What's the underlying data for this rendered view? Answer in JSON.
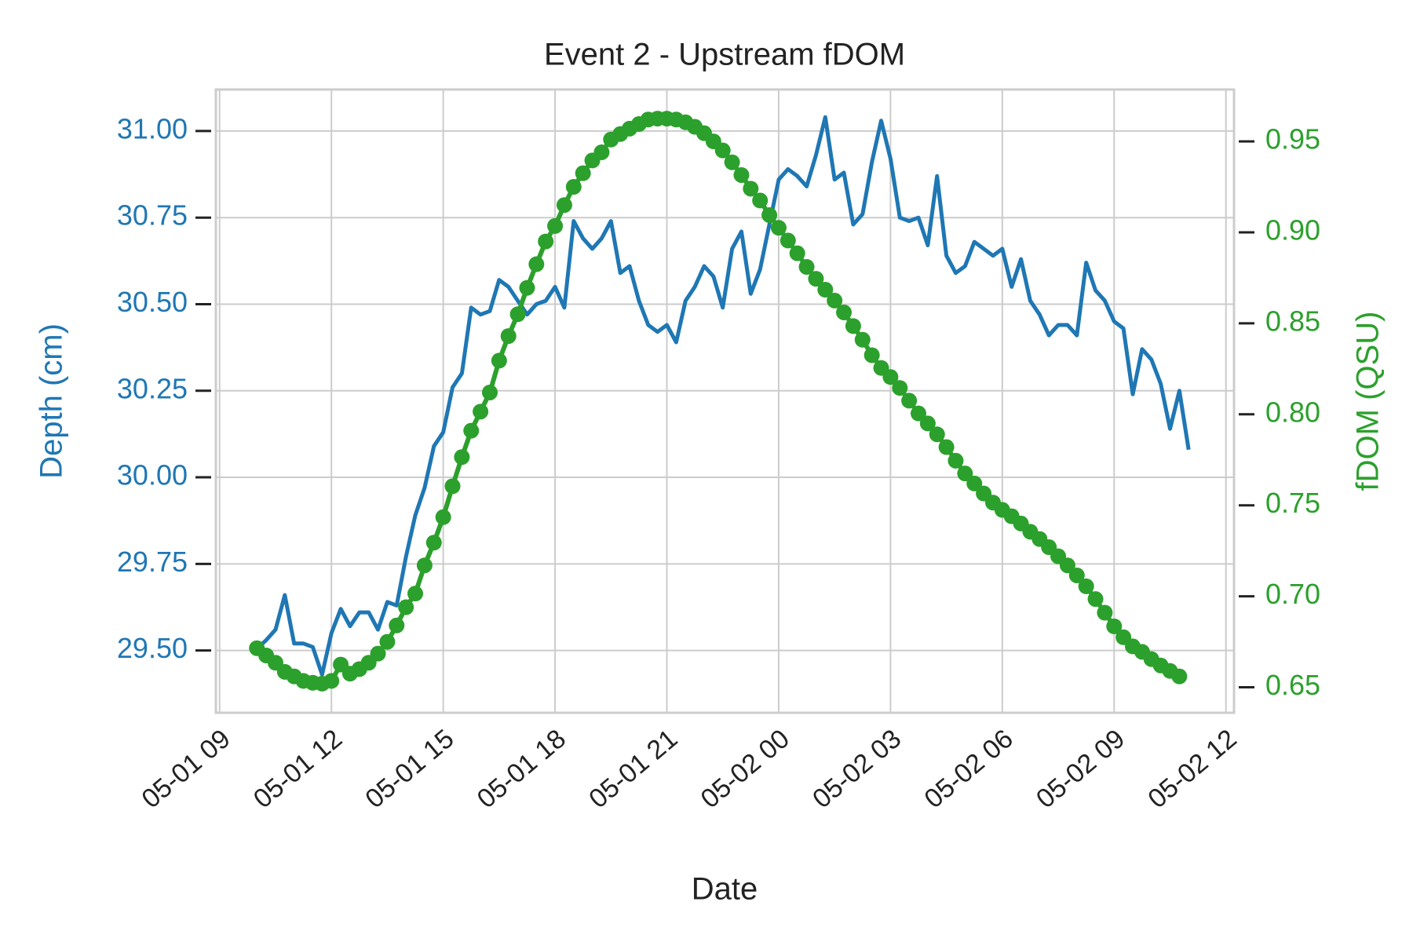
{
  "chart_data": {
    "type": "line",
    "title": "Event 2 - Upstream fDOM",
    "x_label": "Date",
    "y_label": "Depth (cm)",
    "y2_label": "fDOM (QSU)",
    "x": [
      "05-01 10:00",
      "05-01 10:15",
      "05-01 10:30",
      "05-01 10:45",
      "05-01 11:00",
      "05-01 11:15",
      "05-01 11:30",
      "05-01 11:45",
      "05-01 12:00",
      "05-01 12:15",
      "05-01 12:30",
      "05-01 12:45",
      "05-01 13:00",
      "05-01 13:15",
      "05-01 13:30",
      "05-01 13:45",
      "05-01 14:00",
      "05-01 14:15",
      "05-01 14:30",
      "05-01 14:45",
      "05-01 15:00",
      "05-01 15:15",
      "05-01 15:30",
      "05-01 15:45",
      "05-01 16:00",
      "05-01 16:15",
      "05-01 16:30",
      "05-01 16:45",
      "05-01 17:00",
      "05-01 17:15",
      "05-01 17:30",
      "05-01 17:45",
      "05-01 18:00",
      "05-01 18:15",
      "05-01 18:30",
      "05-01 18:45",
      "05-01 19:00",
      "05-01 19:15",
      "05-01 19:30",
      "05-01 19:45",
      "05-01 20:00",
      "05-01 20:15",
      "05-01 20:30",
      "05-01 20:45",
      "05-01 21:00",
      "05-01 21:15",
      "05-01 21:30",
      "05-01 21:45",
      "05-01 22:00",
      "05-01 22:15",
      "05-01 22:30",
      "05-01 22:45",
      "05-01 23:00",
      "05-01 23:15",
      "05-01 23:30",
      "05-01 23:45",
      "05-02 00:00",
      "05-02 00:15",
      "05-02 00:30",
      "05-02 00:45",
      "05-02 01:00",
      "05-02 01:15",
      "05-02 01:30",
      "05-02 01:45",
      "05-02 02:00",
      "05-02 02:15",
      "05-02 02:30",
      "05-02 02:45",
      "05-02 03:00",
      "05-02 03:15",
      "05-02 03:30",
      "05-02 03:45",
      "05-02 04:00",
      "05-02 04:15",
      "05-02 04:30",
      "05-02 04:45",
      "05-02 05:00",
      "05-02 05:15",
      "05-02 05:30",
      "05-02 05:45",
      "05-02 06:00",
      "05-02 06:15",
      "05-02 06:30",
      "05-02 06:45",
      "05-02 07:00",
      "05-02 07:15",
      "05-02 07:30",
      "05-02 07:45",
      "05-02 08:00",
      "05-02 08:15",
      "05-02 08:30",
      "05-02 08:45",
      "05-02 09:00",
      "05-02 09:15",
      "05-02 09:30",
      "05-02 09:45",
      "05-02 10:00",
      "05-02 10:15",
      "05-02 10:30",
      "05-02 10:45",
      "05-02 11:00"
    ],
    "series": [
      {
        "name": "Depth",
        "color": "#1f77b4",
        "axis": "y",
        "markers": false,
        "values": [
          29.505,
          29.53,
          29.56,
          29.66,
          29.52,
          29.52,
          29.51,
          29.43,
          29.55,
          29.62,
          29.57,
          29.61,
          29.61,
          29.56,
          29.64,
          29.63,
          29.77,
          29.89,
          29.97,
          30.09,
          30.13,
          30.26,
          30.3,
          30.49,
          30.47,
          30.48,
          30.57,
          30.55,
          30.51,
          30.47,
          30.5,
          30.51,
          30.55,
          30.49,
          30.74,
          30.69,
          30.66,
          30.69,
          30.74,
          30.59,
          30.61,
          30.51,
          30.44,
          30.42,
          30.44,
          30.39,
          30.51,
          30.55,
          30.61,
          30.58,
          30.49,
          30.66,
          30.71,
          30.53,
          30.6,
          30.73,
          30.86,
          30.89,
          30.87,
          30.84,
          30.93,
          31.04,
          30.86,
          30.88,
          30.73,
          30.76,
          30.91,
          31.03,
          30.92,
          30.75,
          30.74,
          30.75,
          30.67,
          30.87,
          30.64,
          30.59,
          30.61,
          30.68,
          30.66,
          30.64,
          30.66,
          30.55,
          30.63,
          30.51,
          30.47,
          30.41,
          30.44,
          30.44,
          30.41,
          30.62,
          30.54,
          30.51,
          30.45,
          30.43,
          30.24,
          30.37,
          30.34,
          30.27,
          30.14,
          30.25,
          30.08
        ]
      },
      {
        "name": "fDOM",
        "color": "#2ca02c",
        "axis": "y2",
        "markers": true,
        "values": [
          0.6715,
          0.6675,
          0.6635,
          0.6585,
          0.656,
          0.6535,
          0.6525,
          0.652,
          0.6535,
          0.6625,
          0.6575,
          0.66,
          0.6635,
          0.6685,
          0.675,
          0.684,
          0.694,
          0.7015,
          0.717,
          0.7295,
          0.7435,
          0.7605,
          0.7765,
          0.791,
          0.8015,
          0.812,
          0.8295,
          0.843,
          0.855,
          0.8695,
          0.8825,
          0.895,
          0.9035,
          0.915,
          0.925,
          0.9325,
          0.9395,
          0.944,
          0.951,
          0.954,
          0.957,
          0.9595,
          0.962,
          0.9625,
          0.9625,
          0.962,
          0.9605,
          0.958,
          0.9545,
          0.95,
          0.945,
          0.9385,
          0.9315,
          0.924,
          0.9175,
          0.9095,
          0.9025,
          0.8955,
          0.8885,
          0.881,
          0.8745,
          0.8685,
          0.8625,
          0.856,
          0.8485,
          0.841,
          0.8325,
          0.8255,
          0.8205,
          0.8145,
          0.8075,
          0.8005,
          0.795,
          0.789,
          0.782,
          0.7745,
          0.7675,
          0.762,
          0.7565,
          0.7515,
          0.7475,
          0.744,
          0.74,
          0.7355,
          0.7315,
          0.727,
          0.722,
          0.717,
          0.7115,
          0.7055,
          0.6985,
          0.691,
          0.6835,
          0.6775,
          0.6725,
          0.6695,
          0.6655,
          0.662,
          0.659,
          0.656,
          null
        ]
      }
    ],
    "xlim": [
      "05-01 08:54",
      "05-02 12:13"
    ],
    "xticks": [
      "05-01 09",
      "05-01 12",
      "05-01 15",
      "05-01 18",
      "05-01 21",
      "05-02 00",
      "05-02 03",
      "05-02 06",
      "05-02 09",
      "05-02 12"
    ],
    "ylim": [
      29.32,
      31.12
    ],
    "yticks": [
      {
        "value": 29.5,
        "label": "29.50"
      },
      29.75,
      {
        "value": 30,
        "label": "30.00"
      },
      30.25,
      {
        "value": 30.5,
        "label": "30.50"
      },
      30.75,
      {
        "value": 31,
        "label": "31.00"
      }
    ],
    "y2lim": [
      0.636,
      0.9785
    ],
    "y2ticks": [
      0.65,
      {
        "value": 0.7,
        "label": "0.70"
      },
      0.75,
      {
        "value": 0.8,
        "label": "0.80"
      },
      0.85,
      {
        "value": 0.9,
        "label": "0.90"
      },
      0.95
    ],
    "grid": true
  }
}
